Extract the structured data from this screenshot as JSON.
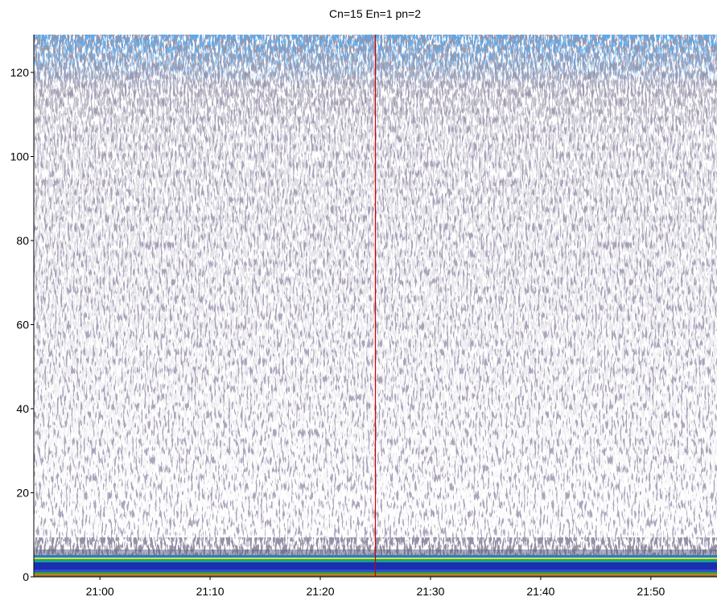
{
  "chart_data": {
    "type": "echogram",
    "title": "Cn=15 En=1 pn=2",
    "xlim": [
      "20:54",
      "21:56"
    ],
    "xticks": [
      "21:00",
      "21:10",
      "21:20",
      "21:30",
      "21:40",
      "21:50"
    ],
    "ylim": [
      0,
      129
    ],
    "yticks": [
      0,
      20,
      40,
      60,
      80,
      100,
      120
    ],
    "cursor_x": "21:25",
    "cursor_color": "#cc0000"
  }
}
